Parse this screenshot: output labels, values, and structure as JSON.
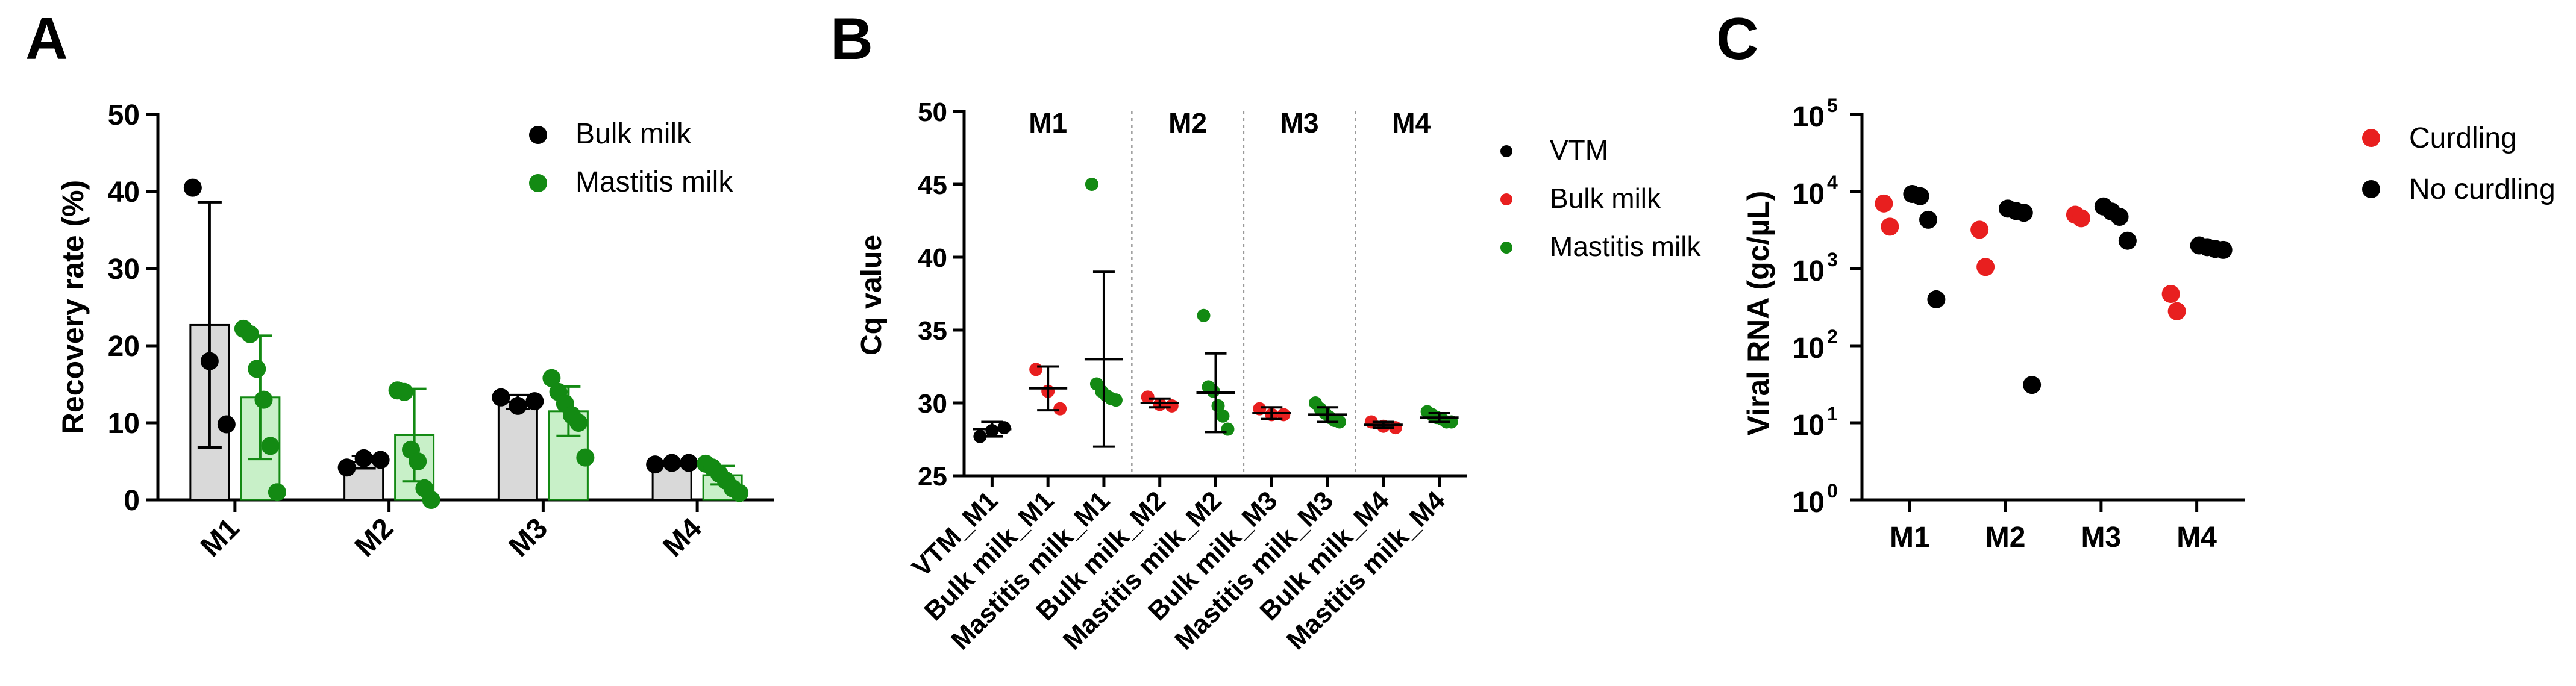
{
  "panels": {
    "a": "A",
    "b": "B",
    "c": "C"
  },
  "chart_data": [
    {
      "id": "A",
      "type": "bar",
      "categories": [
        "M1",
        "M2",
        "M3",
        "M4"
      ],
      "ylabel": "Recovery rate (%)",
      "xlabel": "",
      "ylim": [
        0,
        50
      ],
      "yticks": [
        0,
        10,
        20,
        30,
        40,
        50
      ],
      "legend_position": "top-right",
      "series": [
        {
          "name": "Bulk milk",
          "color": "#000000",
          "bar_fill": "#d9d9d9",
          "bar_stroke": "#000000",
          "means": [
            22.7,
            4.9,
            12.7,
            4.7
          ],
          "sd": [
            15.9,
            0.8,
            0.9,
            0.3
          ],
          "points": [
            [
              40.5,
              18.0,
              9.8
            ],
            [
              4.2,
              5.4,
              5.2
            ],
            [
              13.3,
              12.2,
              12.8
            ],
            [
              4.6,
              4.8,
              4.8
            ]
          ]
        },
        {
          "name": "Mastitis milk",
          "color": "#138a13",
          "bar_fill": "#c8f0c8",
          "bar_stroke": "#138a13",
          "means": [
            13.3,
            8.4,
            11.5,
            3.2
          ],
          "sd": [
            8.0,
            6.0,
            3.2,
            1.2
          ],
          "points": [
            [
              22.2,
              21.5,
              17.0,
              13.0,
              7.0,
              1.0
            ],
            [
              14.2,
              14.0,
              6.5,
              5.0,
              1.5,
              0.0
            ],
            [
              15.8,
              14.0,
              12.5,
              11.0,
              10.0,
              5.5
            ],
            [
              4.7,
              4.2,
              3.4,
              2.5,
              1.5,
              0.9
            ]
          ]
        }
      ]
    },
    {
      "id": "B",
      "type": "scatter",
      "ylabel": "Cq value",
      "ylim": [
        25,
        50
      ],
      "yticks": [
        25,
        30,
        35,
        40,
        45,
        50
      ],
      "categories": [
        "VTM_M1",
        "Bulk milk_M1",
        "Mastitis milk_M1",
        "Bulk milk_M2",
        "Mastitis milk_M2",
        "Bulk milk_M3",
        "Mastitis milk_M3",
        "Bulk milk_M4",
        "Mastitis milk_M4"
      ],
      "group_labels": [
        "M1",
        "M2",
        "M3",
        "M4"
      ],
      "group_spans": [
        [
          0,
          2
        ],
        [
          3,
          4
        ],
        [
          5,
          6
        ],
        [
          7,
          8
        ]
      ],
      "legend_position": "top-right",
      "legend": [
        {
          "name": "VTM",
          "color": "#000000"
        },
        {
          "name": "Bulk milk",
          "color": "#e81f1f"
        },
        {
          "name": "Mastitis milk",
          "color": "#138a13"
        }
      ],
      "groups": [
        {
          "category": "VTM_M1",
          "series": "VTM",
          "color": "#000000",
          "mean": 28.2,
          "sd": 0.5,
          "points": [
            27.7,
            28.1,
            28.3
          ]
        },
        {
          "category": "Bulk milk_M1",
          "series": "Bulk milk",
          "color": "#e81f1f",
          "mean": 31.0,
          "sd": 1.5,
          "points": [
            32.3,
            30.8,
            29.6
          ]
        },
        {
          "category": "Mastitis milk_M1",
          "series": "Mastitis milk",
          "color": "#138a13",
          "mean": 33.0,
          "sd": 6.0,
          "points": [
            45.0,
            31.3,
            30.8,
            30.5,
            30.3,
            30.2
          ]
        },
        {
          "category": "Bulk milk_M2",
          "series": "Bulk milk",
          "color": "#e81f1f",
          "mean": 30.0,
          "sd": 0.3,
          "points": [
            30.4,
            29.9,
            29.8
          ]
        },
        {
          "category": "Mastitis milk_M2",
          "series": "Mastitis milk",
          "color": "#138a13",
          "mean": 30.7,
          "sd": 2.7,
          "points": [
            36.0,
            31.1,
            30.8,
            29.8,
            29.1,
            28.2
          ]
        },
        {
          "category": "Bulk milk_M3",
          "series": "Bulk milk",
          "color": "#e81f1f",
          "mean": 29.3,
          "sd": 0.4,
          "points": [
            29.6,
            29.2,
            29.2
          ]
        },
        {
          "category": "Mastitis milk_M3",
          "series": "Mastitis milk",
          "color": "#138a13",
          "mean": 29.2,
          "sd": 0.5,
          "points": [
            30.0,
            29.6,
            29.3,
            29.0,
            28.8,
            28.7
          ]
        },
        {
          "category": "Bulk milk_M4",
          "series": "Bulk milk",
          "color": "#e81f1f",
          "mean": 28.5,
          "sd": 0.2,
          "points": [
            28.7,
            28.4,
            28.3
          ]
        },
        {
          "category": "Mastitis milk_M4",
          "series": "Mastitis milk",
          "color": "#138a13",
          "mean": 29.0,
          "sd": 0.3,
          "points": [
            29.4,
            29.2,
            29.0,
            28.9,
            28.7,
            28.7
          ]
        }
      ]
    },
    {
      "id": "C",
      "type": "scatter",
      "ylabel": "Viral RNA (gc/µL)",
      "yscale": "log",
      "ylim": [
        1,
        100000
      ],
      "yticks": [
        {
          "base": "10",
          "exp": "0"
        },
        {
          "base": "10",
          "exp": "1"
        },
        {
          "base": "10",
          "exp": "2"
        },
        {
          "base": "10",
          "exp": "3"
        },
        {
          "base": "10",
          "exp": "4"
        },
        {
          "base": "10",
          "exp": "5"
        }
      ],
      "categories": [
        "M1",
        "M2",
        "M3",
        "M4"
      ],
      "legend_position": "top-right",
      "series": [
        {
          "name": "Curdling",
          "color": "#e81f1f",
          "points": [
            [
              7000,
              3500
            ],
            [
              3200,
              1050
            ],
            [
              5000,
              4500
            ],
            [
              470,
              280
            ]
          ]
        },
        {
          "name": "No curdling",
          "color": "#000000",
          "points": [
            [
              9300,
              8700,
              4300,
              400
            ],
            [
              6000,
              5600,
              5300,
              31
            ],
            [
              6400,
              5500,
              4700,
              2300
            ],
            [
              2000,
              1900,
              1800,
              1750
            ]
          ]
        }
      ]
    }
  ]
}
